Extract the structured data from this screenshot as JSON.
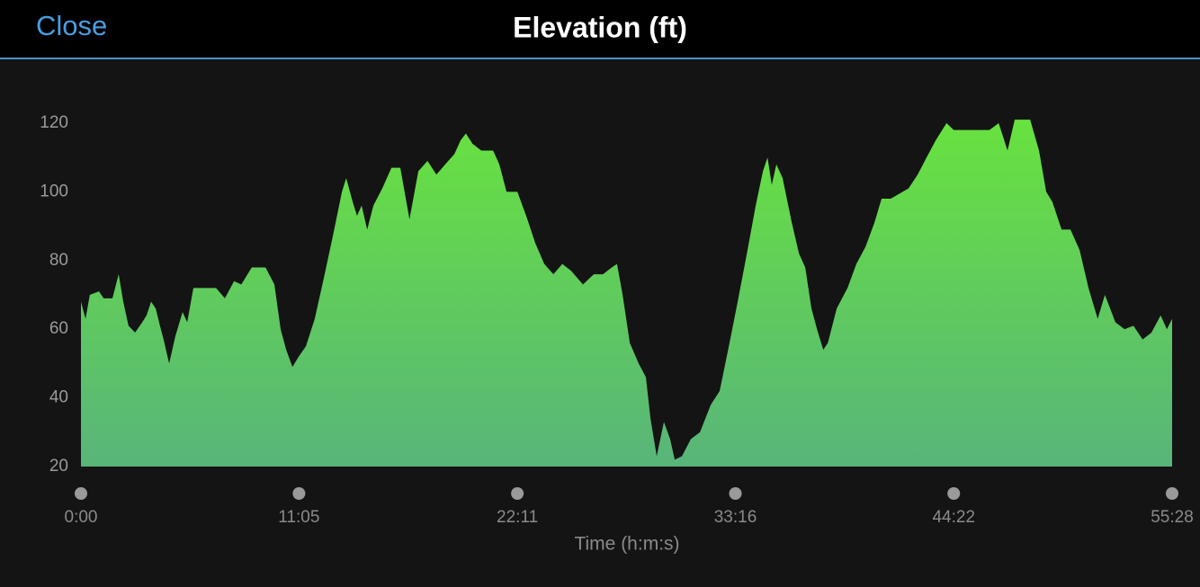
{
  "header": {
    "close": "Close",
    "title": "Elevation (ft)"
  },
  "chart_data": {
    "type": "area",
    "x_label": "Time (h:m:s)",
    "color": "#68e23f",
    "x": [
      0,
      14,
      27,
      55,
      69,
      96,
      115,
      129,
      145,
      165,
      187,
      200,
      214,
      228,
      241,
      252,
      269,
      288,
      310,
      324,
      343,
      370,
      412,
      439,
      467,
      489,
      521,
      563,
      590,
      609,
      626,
      645,
      664,
      686,
      713,
      741,
      768,
      796,
      809,
      829,
      842,
      856,
      873,
      892,
      919,
      947,
      974,
      1002,
      1029,
      1057,
      1084,
      1111,
      1139,
      1158,
      1174,
      1194,
      1221,
      1257,
      1276,
      1298,
      1331,
      1358,
      1386,
      1413,
      1441,
      1468,
      1495,
      1531,
      1564,
      1592,
      1619,
      1635,
      1652,
      1674,
      1701,
      1723,
      1737,
      1756,
      1778,
      1797,
      1811,
      1833,
      1860,
      1888,
      1921,
      1948,
      1976,
      2003,
      2031,
      2058,
      2080,
      2094,
      2107,
      2121,
      2140,
      2168,
      2190,
      2209,
      2228,
      2245,
      2264,
      2278,
      2305,
      2338,
      2365,
      2393,
      2420,
      2442,
      2470,
      2524,
      2552,
      2579,
      2607,
      2640,
      2662,
      2717,
      2771,
      2799,
      2826,
      2848,
      2895,
      2922,
      2944,
      2963,
      2991,
      3018,
      3046,
      3073,
      3101,
      3123,
      3155,
      3183,
      3210,
      3238,
      3265,
      3293,
      3312,
      3328
    ],
    "values": [
      68,
      63,
      70,
      71,
      69,
      69,
      76,
      68,
      61,
      59,
      62,
      64,
      68,
      66,
      61,
      57,
      50,
      58,
      65,
      62,
      72,
      72,
      72,
      69,
      74,
      73,
      78,
      78,
      73,
      60,
      54,
      49,
      52,
      55,
      63,
      75,
      87,
      100,
      104,
      97,
      93,
      96,
      89,
      96,
      101,
      107,
      107,
      92,
      106,
      109,
      105,
      108,
      111,
      115,
      117,
      114,
      112,
      112,
      108,
      100,
      100,
      93,
      85,
      79,
      76,
      79,
      77,
      73,
      76,
      76,
      78,
      79,
      70,
      56,
      50,
      46,
      34,
      23,
      33,
      28,
      22,
      23,
      28,
      30,
      38,
      42,
      55,
      68,
      82,
      96,
      106,
      110,
      102,
      108,
      104,
      91,
      82,
      78,
      66,
      60,
      54,
      56,
      66,
      72,
      79,
      84,
      91,
      98,
      98,
      101,
      105,
      110,
      115,
      120,
      118,
      118,
      118,
      120,
      112,
      121,
      121,
      112,
      100,
      97,
      89,
      89,
      83,
      72,
      63,
      70,
      62,
      60,
      61,
      57,
      59,
      64,
      60,
      63
    ],
    "xlim": [
      0,
      3328
    ],
    "xticks": [
      {
        "value": 0,
        "label": "0:00"
      },
      {
        "value": 665,
        "label": "11:05"
      },
      {
        "value": 1331,
        "label": "22:11"
      },
      {
        "value": 1996,
        "label": "33:16"
      },
      {
        "value": 2662,
        "label": "44:22"
      },
      {
        "value": 3328,
        "label": "55:28"
      }
    ],
    "ylim": [
      20,
      125
    ],
    "yticks": [
      20,
      40,
      60,
      80,
      100,
      120
    ],
    "grid": false
  }
}
